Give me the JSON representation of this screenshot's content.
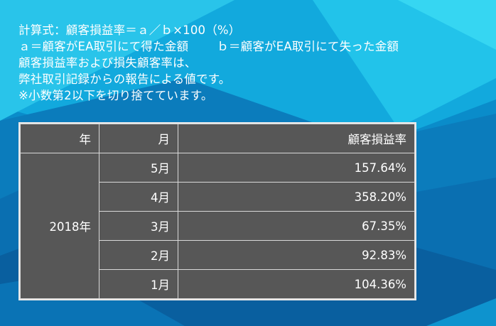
{
  "notes": {
    "line1": "計算式：顧客損益率＝ａ／ｂ×100（%）",
    "line2a": "ａ＝顧客がEA取引にて得た金額",
    "line2b": "ｂ＝顧客がEA取引にて失った金額",
    "line3": "顧客損益率および損失顧客率は、",
    "line4": "弊社取引記録からの報告による値です。",
    "line5": "※小数第2以下を切り捨てています。"
  },
  "table": {
    "headers": {
      "year": "年",
      "month": "月",
      "rate": "顧客損益率"
    },
    "year": "2018年",
    "rows": [
      {
        "month": "5月",
        "rate": "157.64%"
      },
      {
        "month": "4月",
        "rate": "358.20%"
      },
      {
        "month": "3月",
        "rate": "67.35%"
      },
      {
        "month": "2月",
        "rate": "92.83%"
      },
      {
        "month": "1月",
        "rate": "104.36%"
      }
    ]
  },
  "colors": {
    "background": "#0a84c4",
    "table_fill": "#575757",
    "table_border": "#d9d9d9",
    "text": "#ffffff"
  }
}
